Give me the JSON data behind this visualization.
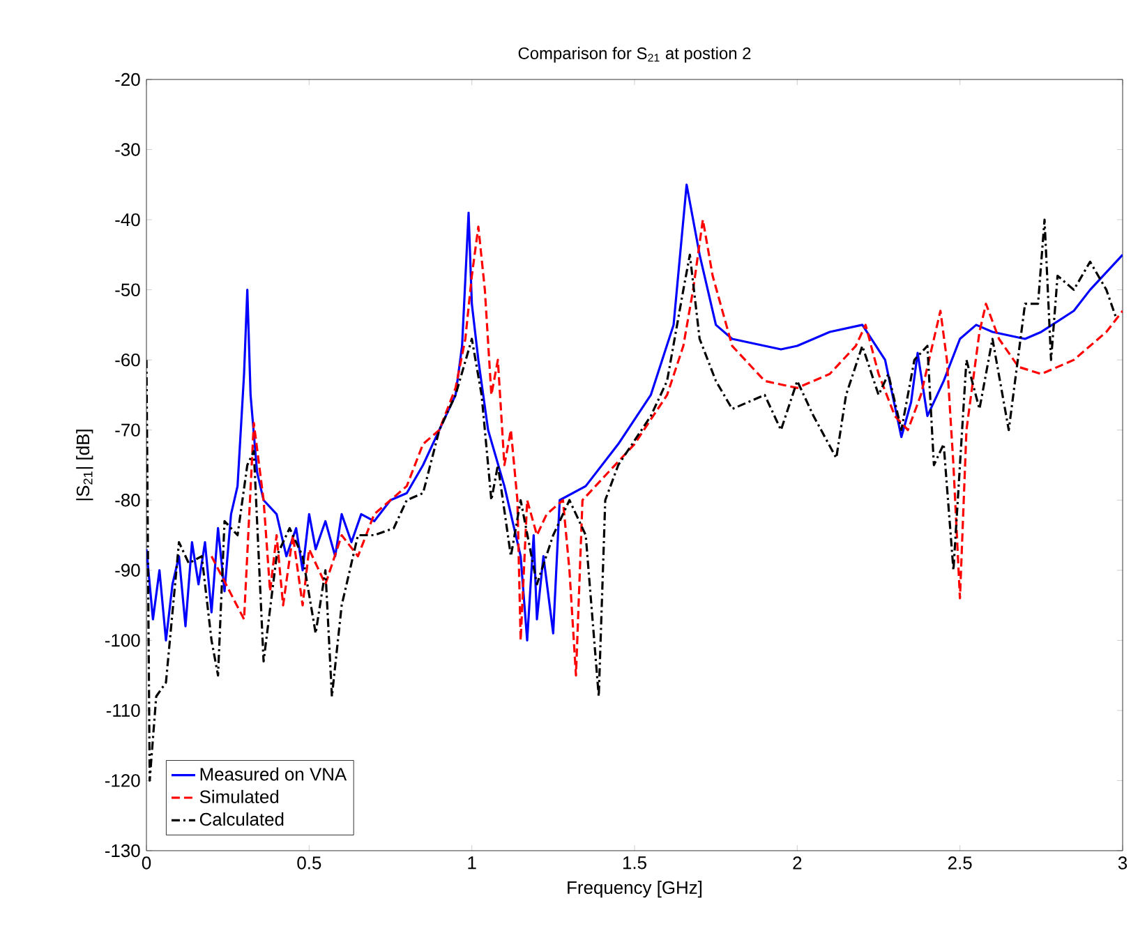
{
  "chart_data": {
    "type": "line",
    "title": "Comparison for S$_{21}$ at postion 2",
    "xlabel": "Frequency [GHz]",
    "ylabel": "|S$_{21}$| [dB]",
    "xlim": [
      0,
      3
    ],
    "ylim": [
      -130,
      -20
    ],
    "xticks": [
      0,
      0.5,
      1,
      1.5,
      2,
      2.5,
      3
    ],
    "yticks": [
      -130,
      -120,
      -110,
      -100,
      -90,
      -80,
      -70,
      -60,
      -50,
      -40,
      -30,
      -20
    ],
    "legend": "bottom left",
    "grid": false,
    "series": [
      {
        "name": "Measured on VNA",
        "color": "#0000ff",
        "line_style": "solid",
        "x": [
          0,
          0.02,
          0.04,
          0.06,
          0.08,
          0.1,
          0.12,
          0.14,
          0.16,
          0.18,
          0.2,
          0.22,
          0.24,
          0.26,
          0.28,
          0.3,
          0.31,
          0.32,
          0.34,
          0.36,
          0.4,
          0.43,
          0.46,
          0.48,
          0.5,
          0.52,
          0.55,
          0.58,
          0.6,
          0.63,
          0.66,
          0.7,
          0.75,
          0.8,
          0.85,
          0.9,
          0.95,
          0.97,
          0.99,
          1.0,
          1.02,
          1.05,
          1.1,
          1.15,
          1.17,
          1.19,
          1.2,
          1.22,
          1.25,
          1.27,
          1.35,
          1.45,
          1.55,
          1.62,
          1.66,
          1.7,
          1.75,
          1.8,
          1.95,
          2.0,
          2.1,
          2.2,
          2.27,
          2.32,
          2.35,
          2.37,
          2.4,
          2.45,
          2.5,
          2.55,
          2.6,
          2.7,
          2.75,
          2.85,
          2.9,
          3.0
        ],
        "values": [
          -87,
          -97,
          -90,
          -100,
          -92,
          -88,
          -98,
          -86,
          -92,
          -86,
          -96,
          -84,
          -93,
          -82,
          -78,
          -62,
          -50,
          -65,
          -76,
          -80,
          -82,
          -88,
          -84,
          -90,
          -82,
          -87,
          -83,
          -88,
          -82,
          -86,
          -82,
          -83,
          -80,
          -79,
          -75,
          -70,
          -65,
          -58,
          -39,
          -52,
          -60,
          -70,
          -78,
          -88,
          -100,
          -85,
          -97,
          -88,
          -99,
          -80,
          -78,
          -72,
          -65,
          -55,
          -35,
          -45,
          -55,
          -57,
          -58.5,
          -58,
          -56,
          -55,
          -60,
          -71,
          -66,
          -59,
          -68,
          -63,
          -57,
          -55,
          -56,
          -57,
          -56,
          -53,
          -50,
          -45
        ]
      },
      {
        "name": "Simulated",
        "color": "#ff0000",
        "line_style": "dashed",
        "x": [
          0.2,
          0.3,
          0.33,
          0.36,
          0.38,
          0.4,
          0.42,
          0.45,
          0.48,
          0.5,
          0.55,
          0.6,
          0.65,
          0.7,
          0.75,
          0.8,
          0.85,
          0.9,
          0.95,
          0.98,
          1.0,
          1.02,
          1.04,
          1.06,
          1.08,
          1.1,
          1.12,
          1.14,
          1.15,
          1.17,
          1.2,
          1.23,
          1.28,
          1.3,
          1.32,
          1.34,
          1.4,
          1.5,
          1.6,
          1.65,
          1.68,
          1.71,
          1.74,
          1.8,
          1.9,
          2.0,
          2.1,
          2.18,
          2.21,
          2.25,
          2.3,
          2.34,
          2.38,
          2.42,
          2.44,
          2.46,
          2.48,
          2.5,
          2.52,
          2.56,
          2.58,
          2.62,
          2.68,
          2.75,
          2.85,
          2.95,
          3.0
        ],
        "values": [
          -88,
          -97,
          -69,
          -80,
          -93,
          -85,
          -95,
          -85,
          -95,
          -87,
          -92,
          -85,
          -88,
          -82,
          -80,
          -78,
          -72,
          -70,
          -64,
          -57,
          -48,
          -41,
          -50,
          -65,
          -60,
          -75,
          -70,
          -80,
          -100,
          -80,
          -85,
          -82,
          -80,
          -90,
          -105,
          -80,
          -77,
          -72,
          -65,
          -58,
          -50,
          -40,
          -48,
          -58,
          -63,
          -64,
          -62,
          -58,
          -55,
          -62,
          -68,
          -70,
          -65,
          -57,
          -53,
          -60,
          -75,
          -94,
          -70,
          -56,
          -52,
          -57,
          -61,
          -62,
          -60,
          -56,
          -53
        ]
      },
      {
        "name": "Calculated",
        "color": "#000000",
        "line_style": "dashdot",
        "x": [
          0,
          0.01,
          0.03,
          0.06,
          0.1,
          0.13,
          0.17,
          0.2,
          0.22,
          0.24,
          0.28,
          0.31,
          0.33,
          0.36,
          0.4,
          0.44,
          0.48,
          0.52,
          0.55,
          0.57,
          0.6,
          0.65,
          0.7,
          0.76,
          0.8,
          0.85,
          0.9,
          0.95,
          1.0,
          1.03,
          1.06,
          1.08,
          1.12,
          1.15,
          1.2,
          1.25,
          1.3,
          1.35,
          1.39,
          1.41,
          1.45,
          1.55,
          1.6,
          1.65,
          1.67,
          1.7,
          1.75,
          1.8,
          1.9,
          1.95,
          2.0,
          2.05,
          2.12,
          2.15,
          2.2,
          2.25,
          2.28,
          2.32,
          2.36,
          2.4,
          2.42,
          2.45,
          2.48,
          2.52,
          2.56,
          2.6,
          2.65,
          2.7,
          2.74,
          2.76,
          2.78,
          2.8,
          2.85,
          2.9,
          2.95,
          2.98
        ],
        "values": [
          -60,
          -120,
          -108,
          -106,
          -86,
          -89,
          -88,
          -100,
          -105,
          -83,
          -85,
          -75,
          -73,
          -103,
          -88,
          -84,
          -88,
          -99,
          -90,
          -108,
          -95,
          -85,
          -85,
          -84,
          -80,
          -79,
          -70,
          -65,
          -57,
          -65,
          -80,
          -75,
          -88,
          -80,
          -92,
          -85,
          -80,
          -85,
          -108,
          -80,
          -75,
          -68,
          -63,
          -50,
          -45,
          -57,
          -63,
          -67,
          -65,
          -70,
          -63,
          -68,
          -74,
          -65,
          -58,
          -65,
          -62,
          -70,
          -60,
          -58,
          -75,
          -72,
          -90,
          -60,
          -67,
          -57,
          -70,
          -52,
          -52,
          -40,
          -60,
          -48,
          -50,
          -46,
          -50,
          -54
        ]
      }
    ]
  }
}
